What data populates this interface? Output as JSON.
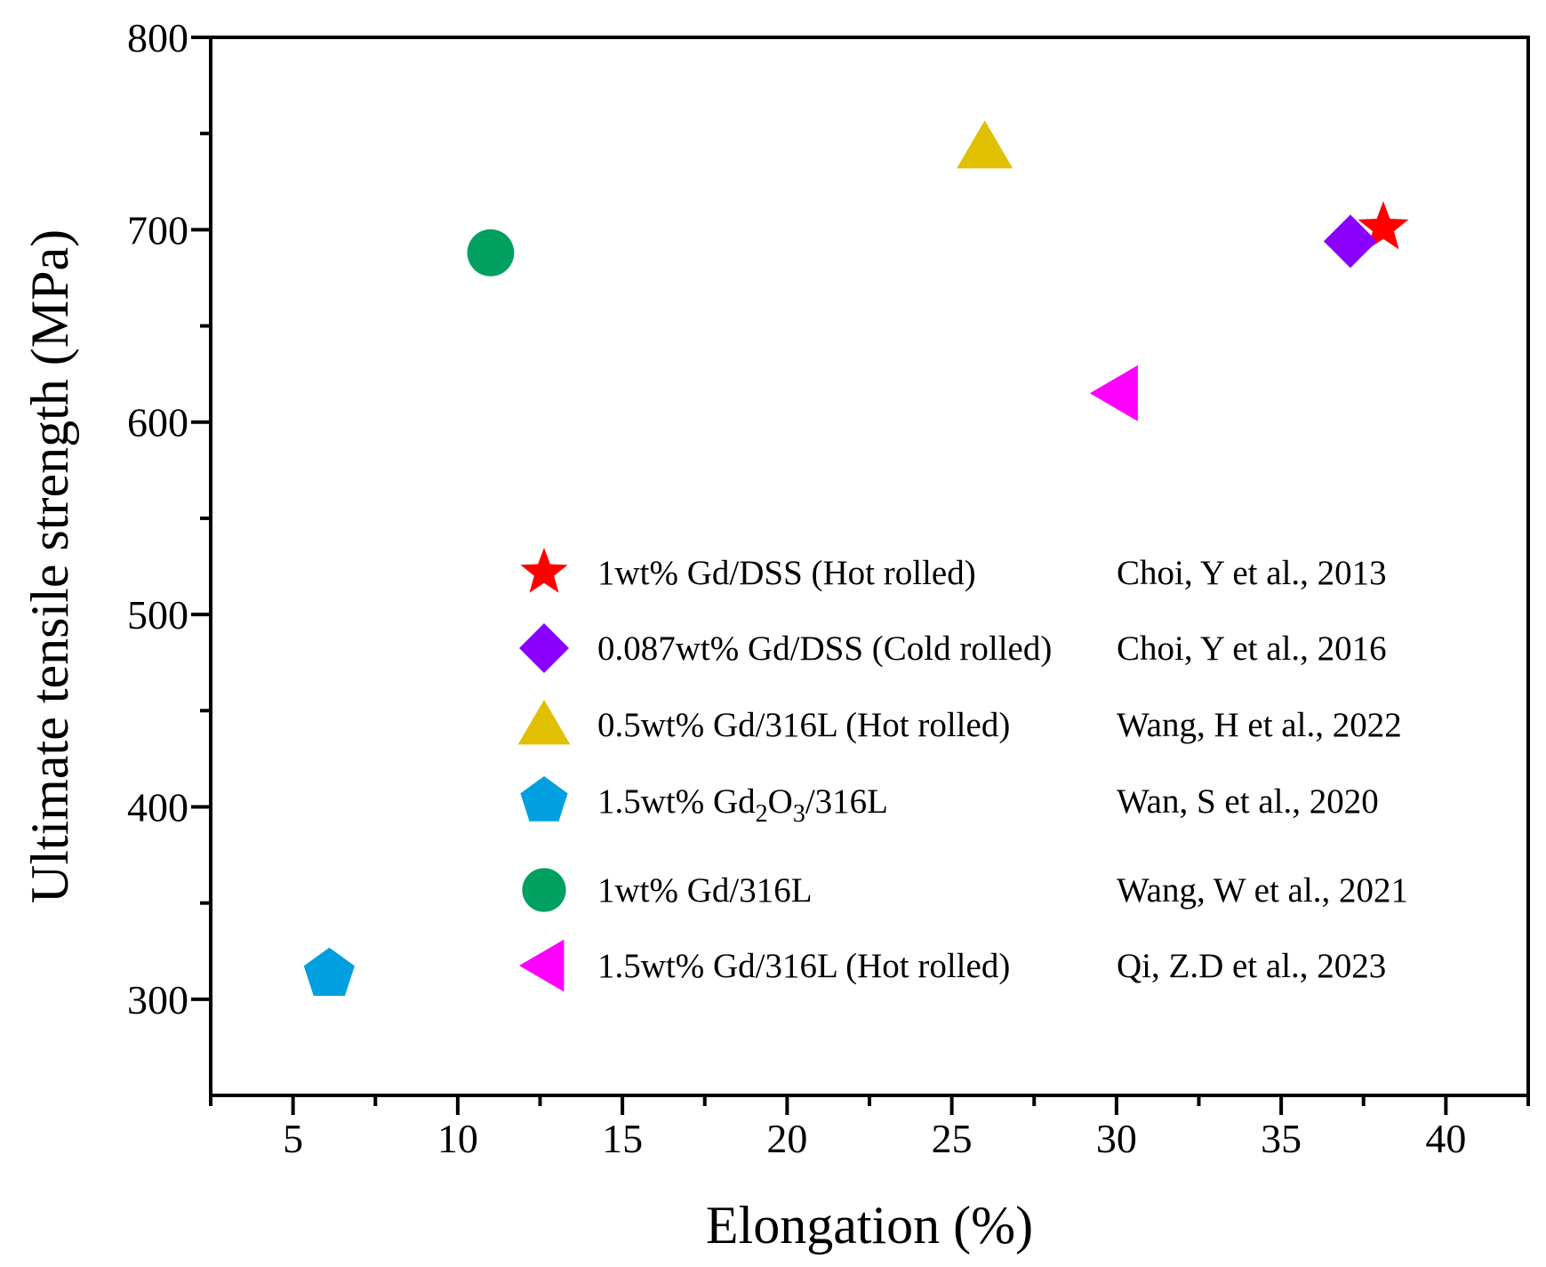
{
  "chart_data": {
    "type": "scatter",
    "xlabel": "Elongation (%)",
    "ylabel": "Ultimate tensile strength (MPa)",
    "xlim": [
      2.5,
      42.5
    ],
    "ylim": [
      250,
      800
    ],
    "x_ticks": [
      "5",
      "10",
      "15",
      "20",
      "25",
      "30",
      "35",
      "40"
    ],
    "y_ticks": [
      "300",
      "400",
      "500",
      "600",
      "700",
      "800"
    ],
    "x_tick_values": [
      5,
      10,
      15,
      20,
      25,
      30,
      35,
      40
    ],
    "y_tick_values": [
      300,
      400,
      500,
      600,
      700,
      800
    ],
    "legend_position": "center-right",
    "series": [
      {
        "name": "1wt% Gd/DSS (Hot rolled)",
        "reference": "Choi, Y et al., 2013",
        "marker": "star",
        "color": "#ff0000",
        "x": 38.1,
        "y": 701
      },
      {
        "name": "0.087wt% Gd/DSS (Cold rolled)",
        "reference": "Choi, Y et al., 2016",
        "marker": "diamond",
        "color": "#8b00ff",
        "x": 37.1,
        "y": 694
      },
      {
        "name": "0.5wt% Gd/316L (Hot rolled)",
        "reference": "Wang, H et al., 2022",
        "marker": "triangle-up",
        "color": "#e0c000",
        "x": 26.0,
        "y": 743
      },
      {
        "name_parts": [
          "1.5wt% Gd",
          "2",
          "O",
          "3",
          "/316L"
        ],
        "reference": "Wan, S et al., 2020",
        "marker": "pentagon",
        "color": "#00a0e0",
        "x": 6.1,
        "y": 313
      },
      {
        "name": "1wt% Gd/316L",
        "reference": "Wang, W et al., 2021",
        "marker": "circle",
        "color": "#00a060",
        "x": 11.0,
        "y": 688
      },
      {
        "name": "1.5wt% Gd/316L (Hot rolled)",
        "reference": "Qi, Z.D et al., 2023",
        "marker": "triangle-left",
        "color": "#ff00ff",
        "x": 30.0,
        "y": 615
      }
    ]
  }
}
